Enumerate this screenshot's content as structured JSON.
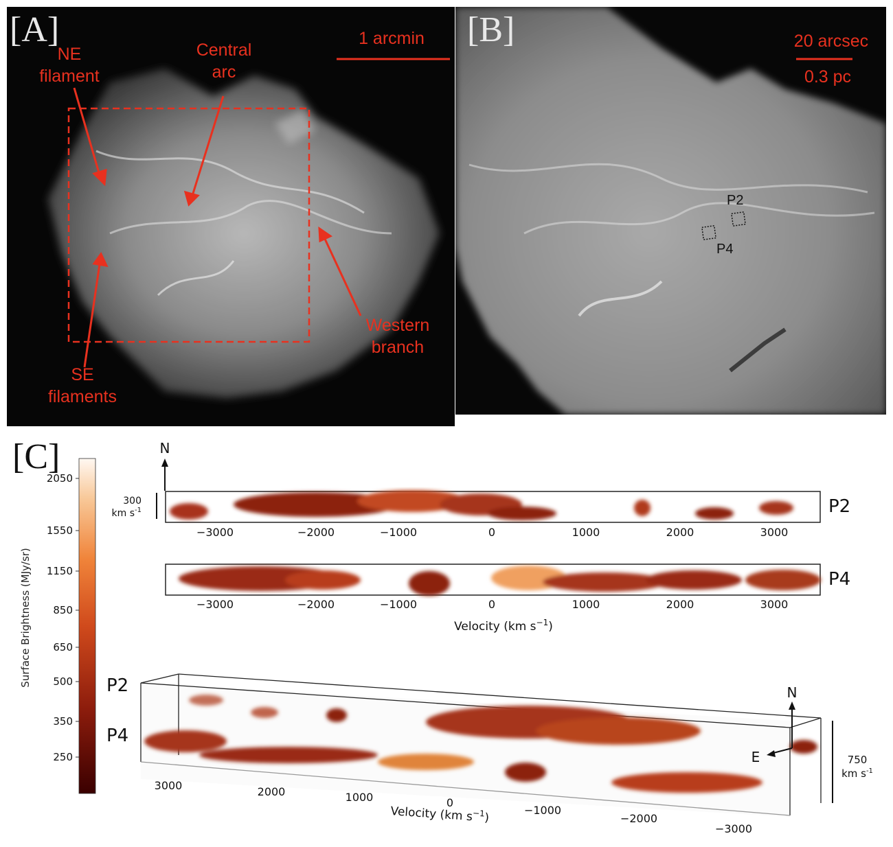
{
  "panelA": {
    "tag": "[A]",
    "scalebar": "1 arcmin",
    "labels": {
      "ne_line1": "NE",
      "ne_line2": "filament",
      "central_line1": "Central",
      "central_line2": "arc",
      "western_line1": "Western",
      "western_line2": "branch",
      "se_line1": "SE",
      "se_line2": "filaments"
    }
  },
  "panelB": {
    "tag": "[B]",
    "scale_top": "20 arcsec",
    "scale_bottom": "0.3 pc",
    "p2": "P2",
    "p4": "P4"
  },
  "panelC": {
    "tag": "[C]",
    "colorbar": {
      "label": "Surface Brightness (MJy/sr)",
      "ticks": [
        "2050",
        "1550",
        "1150",
        "850",
        "650",
        "500",
        "350",
        "250"
      ]
    },
    "compass_top": "N",
    "scale_top_value": "300",
    "scale_top_unit": "km s",
    "scale_top_exp": "-1",
    "strip_p2_label": "P2",
    "strip_p4_label": "P4",
    "strip_ticks": [
      "−3000",
      "−2000",
      "−1000",
      "0",
      "1000",
      "2000",
      "3000"
    ],
    "xlabel_main": "Velocity (km s",
    "xlabel_exp": "−1",
    "xlabel_close": ")",
    "box_p2": "P2",
    "box_p4": "P4",
    "box_ticks": [
      "3000",
      "2000",
      "1000",
      "0",
      "−1000",
      "−2000",
      "−3000"
    ],
    "compass_n": "N",
    "compass_e": "E",
    "scale_box_value": "750",
    "scale_box_unit": "km s",
    "scale_box_exp": "-1",
    "colors": {
      "accent": "#e8311f",
      "emission_dark": "#5a0a05",
      "emission_mid": "#b0341a",
      "emission_light": "#f2a35a"
    }
  }
}
